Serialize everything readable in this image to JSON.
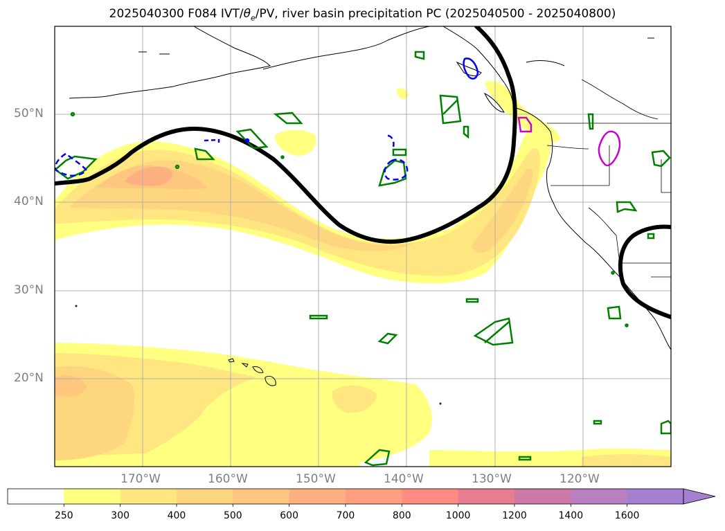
{
  "title_prefix": "2025040300 F084 IVT/",
  "title_theta": "θ",
  "title_theta_sub": "e",
  "title_suffix": "/PV, river basin precipitation PC (2025040500 - 2025040800)",
  "map": {
    "extent_lon": [
      -180,
      -110
    ],
    "extent_lat": [
      10,
      60
    ],
    "lat_labels": [
      {
        "lat": 50,
        "text": "50°N"
      },
      {
        "lat": 40,
        "text": "40°N"
      },
      {
        "lat": 30,
        "text": "30°N"
      },
      {
        "lat": 20,
        "text": "20°N"
      }
    ],
    "lon_labels": [
      {
        "lon": -170,
        "text": "170°W"
      },
      {
        "lon": -160,
        "text": "160°W"
      },
      {
        "lon": -150,
        "text": "150°W"
      },
      {
        "lon": -140,
        "text": "140°W"
      },
      {
        "lon": -130,
        "text": "130°W"
      },
      {
        "lon": -120,
        "text": "120°W"
      }
    ],
    "gridlines": true,
    "contour_colors": {
      "pv": "#000000",
      "precip_positive": "#008000",
      "precip_blue": "#0000ff",
      "precip_magenta": "#cc00cc"
    }
  },
  "colorbar": {
    "ticks": [
      "250",
      "300",
      "400",
      "500",
      "600",
      "700",
      "800",
      "1000",
      "1200",
      "1400",
      "1600"
    ],
    "colors": [
      "#ffffff",
      "#ffff80",
      "#ffe680",
      "#ffd680",
      "#ffc680",
      "#ffb080",
      "#ff9f80",
      "#ff8c80",
      "#e87c90",
      "#cc79a7",
      "#b97fc0",
      "#a57fd0"
    ],
    "extend": "max"
  }
}
